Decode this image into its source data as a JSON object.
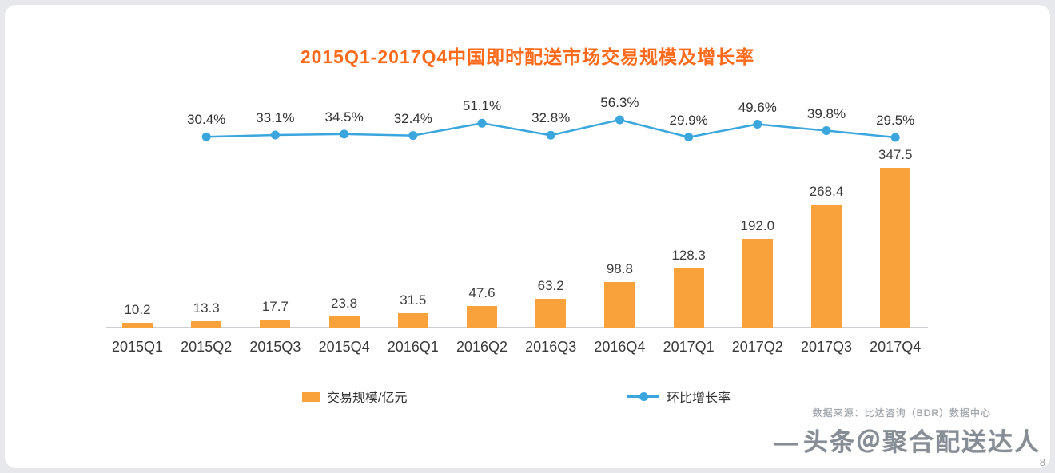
{
  "page": {
    "title": "2015Q1-2017Q4中国即时配送市场交易规模及增长率",
    "source_note": "数据来源：比达咨询（BDR）数据中心",
    "watermark_prefix": "—",
    "watermark": "头条＠聚合配送达人",
    "page_number": "8"
  },
  "legend": {
    "bars_label": "交易规模/亿元",
    "line_label": "环比增长率"
  },
  "colors": {
    "title": "#ff6a1a",
    "bar": "#f9a13b",
    "line": "#3aa6dd",
    "label": "#333333",
    "axis": "#cdced1",
    "muted": "#9aa0a6"
  },
  "chart_data": {
    "type": "bar",
    "title": "2015Q1-2017Q4中国即时配送市场交易规模及增长率",
    "categories": [
      "2015Q1",
      "2015Q2",
      "2015Q3",
      "2015Q4",
      "2016Q1",
      "2016Q2",
      "2016Q3",
      "2016Q4",
      "2017Q1",
      "2017Q2",
      "2017Q3",
      "2017Q4"
    ],
    "series": [
      {
        "name": "交易规模/亿元",
        "type": "bar",
        "unit": "亿元",
        "color": "#f9a13b",
        "values": [
          10.2,
          13.3,
          17.7,
          23.8,
          31.5,
          47.6,
          63.2,
          98.8,
          128.3,
          192.0,
          268.4,
          347.5
        ]
      },
      {
        "name": "环比增长率",
        "type": "line",
        "unit": "%",
        "color": "#3aa6dd",
        "values": [
          null,
          30.4,
          33.1,
          34.5,
          32.4,
          51.1,
          32.8,
          56.3,
          29.9,
          49.6,
          39.8,
          29.5
        ]
      }
    ],
    "bar_ylim": [
      0,
      360
    ],
    "line_ylim_pct": [
      0,
      60
    ],
    "grid": false,
    "legend_position": "bottom",
    "data_labels": true
  }
}
